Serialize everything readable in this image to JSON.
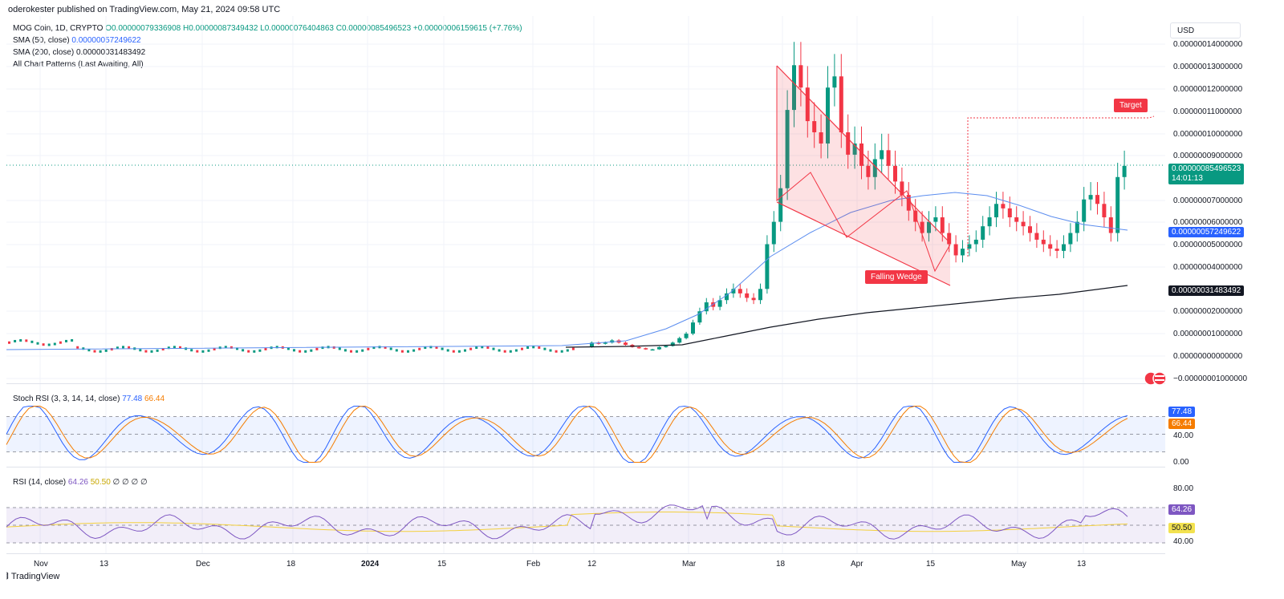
{
  "header": {
    "publisher_line": "oderokester published on TradingView.com, May 21, 2024 09:58 UTC"
  },
  "legend": {
    "symbol": "MOG Coin, 1D, CRYPTO",
    "ohlc": "O0.00000079336908 H0.00000087349432 L0.00000076404863 C0.00000085496523 +0.00000006159615 (+7.76%)",
    "sma50_label": "SMA (50, close)",
    "sma50_value": "0.0000005724962​2",
    "sma200_label": "SMA (200, close)",
    "sma200_value": "0.00000031483492",
    "patterns_label": "All Chart Patterns (Last Awaiting, All)",
    "stoch_label": "Stoch RSI (3, 3, 14, 14, close)",
    "stoch_k": "77.48",
    "stoch_d": "66.44",
    "rsi_label": "RSI (14, close)",
    "rsi_value": "64.26",
    "rsi_ma": "50.50",
    "rsi_extra": "∅ ∅ ∅ ∅"
  },
  "currency": "USD",
  "colors": {
    "up": "#089981",
    "down": "#f23645",
    "sma50": "#5b8def",
    "sma200": "#131722",
    "stoch_k": "#2962ff",
    "stoch_d": "#f57c00",
    "rsi": "#7e57c2",
    "rsi_ma": "#f3e250"
  },
  "price_axis": [
    "0.00000014000000",
    "0.00000013000000",
    "0.00000012000000",
    "0.00000011000000",
    "0.00000010000000",
    "0.00000009000000",
    "0.00000007000000",
    "0.00000006000000",
    "0.00000005000000",
    "0.00000004000000",
    "0.00000002000000",
    "0.00000001000000",
    "0.00000000000000",
    "−0.00000001000000"
  ],
  "price_tags": {
    "last": "0.00000085496523",
    "countdown": "14:01:13",
    "sma50": "0.00000057249622",
    "sma200": "0.00000031483492"
  },
  "stoch_axis": [
    "40.00",
    "0.00"
  ],
  "stoch_tags": {
    "k": "77.48",
    "d": "66.44"
  },
  "rsi_axis": [
    "80.00",
    "40.00"
  ],
  "rsi_tags": {
    "rsi": "64.26",
    "ma": "50.50"
  },
  "annotations": {
    "target": "Target",
    "wedge": "Falling Wedge"
  },
  "x_axis": [
    {
      "label": "Nov",
      "bold": false
    },
    {
      "label": "13",
      "bold": false
    },
    {
      "label": "Dec",
      "bold": false
    },
    {
      "label": "18",
      "bold": false
    },
    {
      "label": "2024",
      "bold": true
    },
    {
      "label": "15",
      "bold": false
    },
    {
      "label": "Feb",
      "bold": false
    },
    {
      "label": "12",
      "bold": false
    },
    {
      "label": "Mar",
      "bold": false
    },
    {
      "label": "18",
      "bold": false
    },
    {
      "label": "Apr",
      "bold": false
    },
    {
      "label": "15",
      "bold": false
    },
    {
      "label": "May",
      "bold": false
    },
    {
      "label": "13",
      "bold": false
    }
  ],
  "footer": "TradingView",
  "chart_data": {
    "type": "candlestick",
    "series": [
      {
        "name": "MOG Coin, 1D, CRYPTO",
        "last_close": 8.5496523e-07
      },
      {
        "name": "SMA (50, close)",
        "last": 5.7249622e-07
      },
      {
        "name": "SMA (200, close)",
        "last": 3.1483492e-07
      }
    ],
    "closes": [
      0.06,
      0.055,
      0.06,
      0.07,
      0.06,
      0.05,
      0.04,
      0.035,
      0.03,
      0.03,
      0.04,
      0.045,
      0.06,
      0.08,
      0.1,
      0.15,
      0.2,
      0.24,
      0.22,
      0.25,
      0.28,
      0.3,
      0.28,
      0.26,
      0.25,
      0.3,
      0.5,
      0.6,
      0.75,
      1.1,
      1.3,
      1.2,
      1.05,
      1.0,
      0.95,
      1.2,
      1.25,
      1.0,
      0.9,
      0.95,
      0.85,
      0.8,
      0.88,
      0.92,
      0.85,
      0.78,
      0.72,
      0.65,
      0.6,
      0.55,
      0.6,
      0.62,
      0.55,
      0.5,
      0.45,
      0.48,
      0.5,
      0.52,
      0.58,
      0.62,
      0.68,
      0.66,
      0.62,
      0.6,
      0.58,
      0.55,
      0.52,
      0.5,
      0.48,
      0.47,
      0.5,
      0.55,
      0.6,
      0.7,
      0.72,
      0.68,
      0.62,
      0.55,
      0.8,
      0.85
    ],
    "ylim": [
      -1e-08,
      1.4e-07
    ],
    "stoch_rsi": {
      "k_last": 77.48,
      "d_last": 66.44,
      "levels": [
        80,
        50,
        20
      ]
    },
    "rsi": {
      "last": 64.26,
      "ma_last": 50.5,
      "levels": [
        70,
        50,
        30
      ]
    },
    "patterns": {
      "falling_wedge_label": "Falling Wedge",
      "target_label": "Target"
    },
    "legend_placement": "top-left"
  }
}
